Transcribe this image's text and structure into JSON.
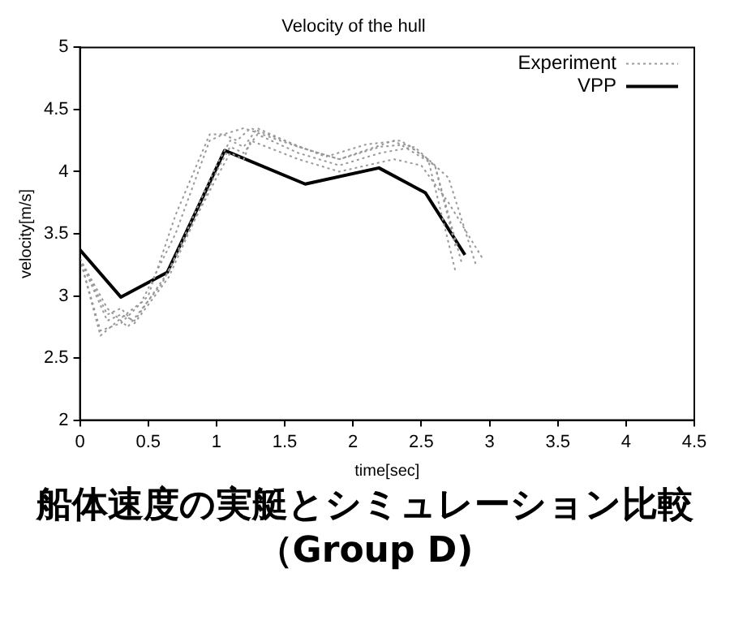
{
  "chart_data": {
    "type": "line",
    "title": "Velocity of the hull",
    "xlabel": "time[sec]",
    "ylabel": "velocity[m/s]",
    "annotations": [
      "船体速度の実艇とシミュレーション比較",
      "（Group D)"
    ],
    "xlim": [
      0,
      4.5
    ],
    "xticks": [
      0,
      0.5,
      1,
      1.5,
      2,
      2.5,
      3,
      3.5,
      4,
      4.5
    ],
    "ylim": [
      2,
      5
    ],
    "yticks": [
      2,
      2.5,
      3,
      3.5,
      4,
      4.5,
      5
    ],
    "grid": false,
    "legend": "top right",
    "marker": "none",
    "series": [
      {
        "name": "Experiment",
        "color": "#999999",
        "line_style": "dotted",
        "x": [
          0,
          0.15,
          0.3,
          0.45,
          0.7,
          0.95,
          1.05,
          1.15,
          1.25,
          1.5,
          1.8,
          2.1,
          2.35,
          2.55,
          2.75
        ],
        "values": [
          3.3,
          2.68,
          2.82,
          2.95,
          3.5,
          4.25,
          4.3,
          4.25,
          4.35,
          4.25,
          4.12,
          4.22,
          4.25,
          4.1,
          3.2
        ]
      },
      {
        "color": "#999999",
        "line_style": "dotted",
        "x": [
          0,
          0.2,
          0.3,
          0.4,
          0.65,
          1.0,
          1.1,
          1.2,
          1.3,
          1.6,
          1.9,
          2.2,
          2.4,
          2.6,
          2.8
        ],
        "values": [
          3.3,
          2.8,
          2.85,
          2.8,
          3.2,
          4.05,
          4.25,
          4.2,
          4.35,
          4.2,
          4.1,
          4.2,
          4.22,
          4.05,
          3.25
        ]
      },
      {
        "color": "#999999",
        "line_style": "dotted",
        "x": [
          0,
          0.2,
          0.3,
          0.4,
          0.65,
          1.0,
          1.1,
          1.2,
          1.3,
          1.6,
          1.9,
          2.2,
          2.45,
          2.7,
          2.9
        ],
        "values": [
          3.3,
          2.85,
          2.9,
          2.78,
          3.15,
          4.0,
          4.2,
          4.15,
          4.3,
          4.15,
          4.05,
          4.15,
          4.2,
          3.95,
          3.25
        ]
      },
      {
        "color": "#999999",
        "line_style": "dotted",
        "x": [
          0,
          0.2,
          0.35,
          0.6,
          1.0,
          1.1,
          1.2,
          1.25,
          1.6,
          1.9,
          2.3,
          2.5,
          2.7,
          2.95
        ],
        "values": [
          3.3,
          2.9,
          2.75,
          3.1,
          3.95,
          4.15,
          4.1,
          4.25,
          4.1,
          4.0,
          4.1,
          4.05,
          3.75,
          3.3
        ]
      },
      {
        "color": "#999999",
        "line_style": "dotted",
        "x": [
          0,
          0.15,
          0.3,
          0.5,
          0.7,
          0.95,
          1.05,
          1.2,
          1.6,
          1.9,
          2.3,
          2.6,
          2.75
        ],
        "values": [
          3.3,
          2.72,
          2.78,
          3.0,
          3.65,
          4.3,
          4.3,
          4.35,
          4.2,
          4.1,
          4.25,
          4.05,
          3.4
        ]
      },
      {
        "name": "VPP",
        "color": "#000000",
        "line_style": "solid",
        "x": [
          0,
          0.3,
          0.64,
          1.06,
          1.65,
          2.19,
          2.53,
          2.82
        ],
        "values": [
          3.37,
          2.99,
          3.19,
          4.17,
          3.9,
          4.03,
          3.83,
          3.33
        ]
      }
    ]
  }
}
